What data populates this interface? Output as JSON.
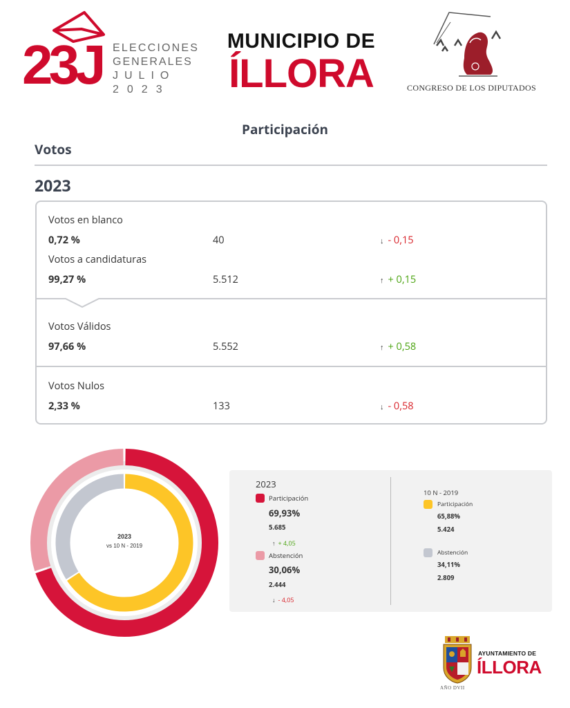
{
  "header": {
    "logo_number": "23J",
    "logo_lines": [
      "ELECCIONES",
      "GENERALES",
      "JULIO",
      "2023"
    ],
    "municipio_line1": "MUNICIPIO DE",
    "municipio_line2": "ÍLLORA",
    "congreso_text": "CONGRESO DE LOS DIPUTADOS"
  },
  "section_title": "Participación",
  "votos_heading": "Votos",
  "year_heading": "2023",
  "card": {
    "rows": [
      {
        "label": "Votos en blanco",
        "pct": "0,72 %",
        "count": "40",
        "diff_arrow": "↓",
        "diff": "- 0,15",
        "trend": "neg"
      },
      {
        "label": "Votos a candidaturas",
        "pct": "99,27 %",
        "count": "5.512",
        "diff_arrow": "↑",
        "diff": "+ 0,15",
        "trend": "pos"
      },
      {
        "label": "Votos Válidos",
        "pct": "97,66 %",
        "count": "5.552",
        "diff_arrow": "↑",
        "diff": "+ 0,58",
        "trend": "pos"
      },
      {
        "label": "Votos Nulos",
        "pct": "2,33 %",
        "count": "133",
        "diff_arrow": "↓",
        "diff": "- 0,58",
        "trend": "neg"
      }
    ]
  },
  "chart_data": {
    "type": "pie",
    "subtype": "double-donut",
    "center_title": "2023",
    "center_subtitle": "vs 10 N - 2019",
    "series": [
      {
        "name": "2023",
        "ring": "outer",
        "slices": [
          {
            "label": "Participación",
            "value": 69.93,
            "color": "#d6143a"
          },
          {
            "label": "Abstención",
            "value": 30.06,
            "color": "#eb9aa6"
          }
        ]
      },
      {
        "name": "10 N - 2019",
        "ring": "inner",
        "slices": [
          {
            "label": "Participación",
            "value": 65.88,
            "color": "#fdc527"
          },
          {
            "label": "Abstención",
            "value": 34.11,
            "color": "#c3c7d0"
          }
        ]
      }
    ]
  },
  "legend": {
    "current": {
      "year": "2023",
      "participacion": {
        "label": "Participación",
        "pct": "69,93%",
        "count": "5.685",
        "diff_arrow": "↑",
        "diff": "+ 4,05",
        "color": "#d6143a"
      },
      "abstencion": {
        "label": "Abstención",
        "pct": "30,06%",
        "count": "2.444",
        "diff_arrow": "↓",
        "diff": "- 4,05",
        "color": "#eb9aa6"
      }
    },
    "previous": {
      "year": "10 N - 2019",
      "participacion": {
        "label": "Participación",
        "pct": "65,88%",
        "count": "5.424",
        "color": "#fdc527"
      },
      "abstencion": {
        "label": "Abstención",
        "pct": "34,11%",
        "count": "2.809",
        "color": "#c3c7d0"
      }
    }
  },
  "ayuntamiento": {
    "line1": "AYUNTAMIENTO DE",
    "line2": "ÍLLORA",
    "year_text": "AÑO DVII"
  }
}
